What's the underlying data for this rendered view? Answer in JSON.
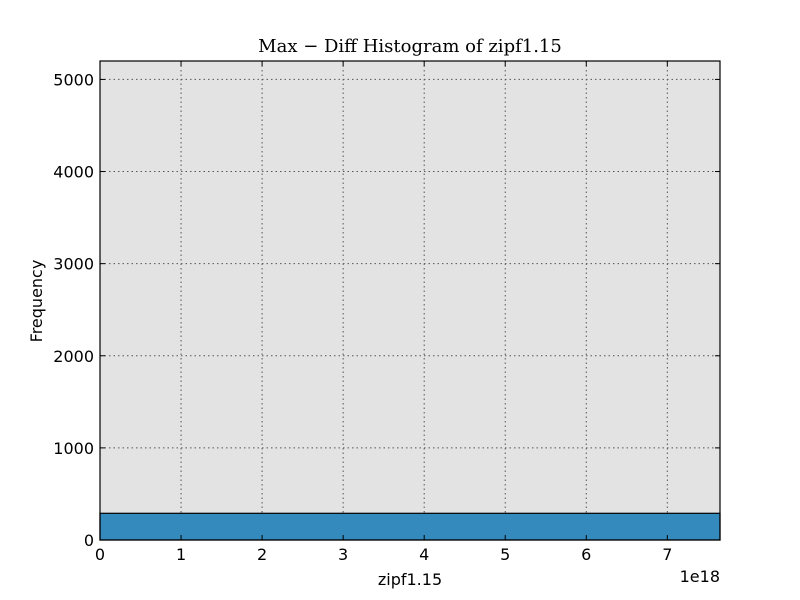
{
  "chart_data": {
    "type": "bar",
    "title": "Max − Diff Histogram of zipf1.15",
    "xlabel": "zipf1.15",
    "ylabel": "Frequency",
    "x_offset_label": "1e18",
    "xlim": [
      0,
      7.65
    ],
    "ylim": [
      0,
      5200
    ],
    "x_ticks": [
      0,
      1,
      2,
      3,
      4,
      5,
      6,
      7
    ],
    "y_ticks": [
      0,
      1000,
      2000,
      3000,
      4000,
      5000
    ],
    "grid": true,
    "bins": [
      {
        "x0": 0,
        "x1": 7.65,
        "value": 290
      }
    ],
    "colors": {
      "plot_background": "#e3e3e3",
      "bar_fill": "#348abd",
      "bar_edge": "#000000",
      "grid": "#555555"
    }
  }
}
